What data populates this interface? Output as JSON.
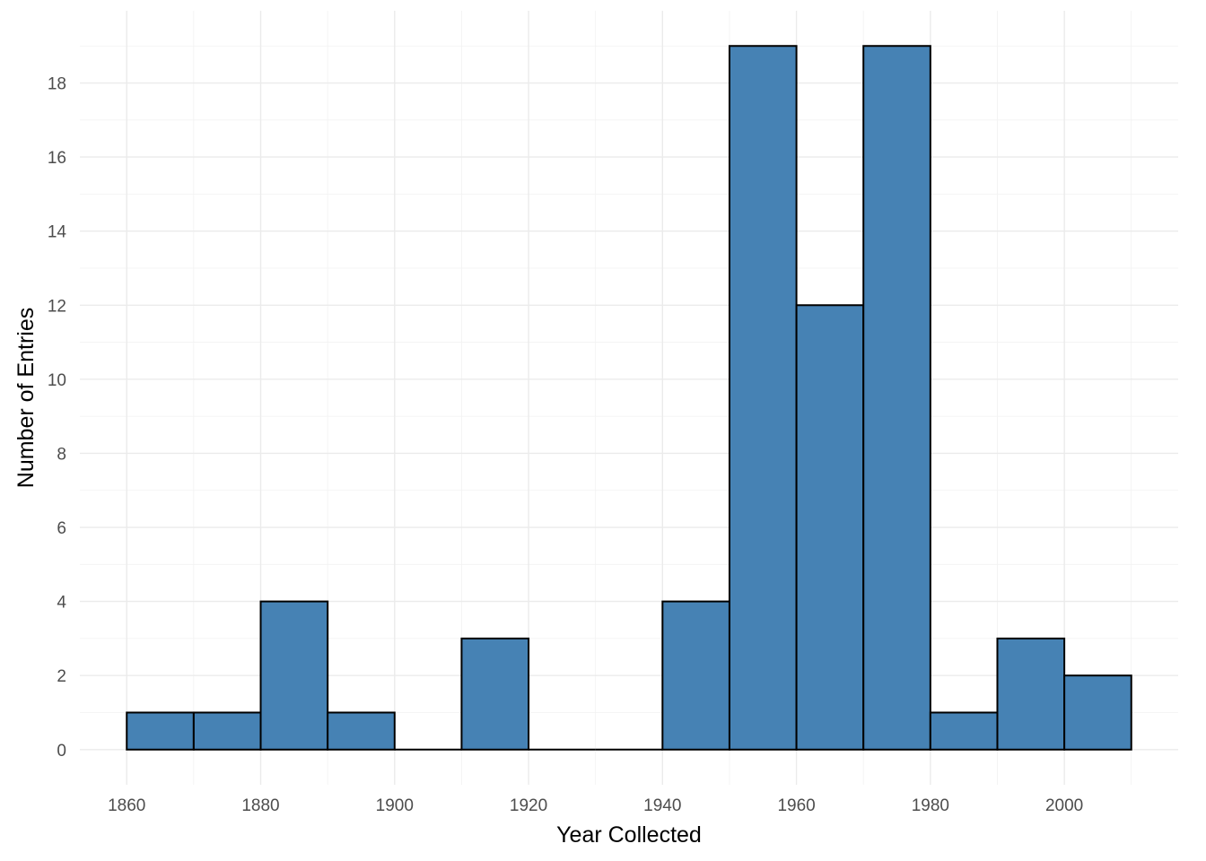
{
  "chart_data": {
    "type": "bar",
    "subtype": "histogram",
    "title": "",
    "xlabel": "Year Collected",
    "ylabel": "Number of Entries",
    "bin_width": 10,
    "bins": [
      {
        "start": 1860,
        "end": 1870,
        "count": 1
      },
      {
        "start": 1870,
        "end": 1880,
        "count": 1
      },
      {
        "start": 1880,
        "end": 1890,
        "count": 4
      },
      {
        "start": 1890,
        "end": 1900,
        "count": 1
      },
      {
        "start": 1900,
        "end": 1910,
        "count": 0
      },
      {
        "start": 1910,
        "end": 1920,
        "count": 3
      },
      {
        "start": 1920,
        "end": 1930,
        "count": 0
      },
      {
        "start": 1930,
        "end": 1940,
        "count": 0
      },
      {
        "start": 1940,
        "end": 1950,
        "count": 4
      },
      {
        "start": 1950,
        "end": 1960,
        "count": 19
      },
      {
        "start": 1960,
        "end": 1970,
        "count": 12
      },
      {
        "start": 1970,
        "end": 1980,
        "count": 19
      },
      {
        "start": 1980,
        "end": 1990,
        "count": 1
      },
      {
        "start": 1990,
        "end": 2000,
        "count": 3
      },
      {
        "start": 2000,
        "end": 2010,
        "count": 2
      }
    ],
    "xlim": [
      1853,
      2017
    ],
    "ylim": [
      -0.95,
      19.95
    ],
    "x_ticks": [
      1860,
      1880,
      1900,
      1920,
      1940,
      1960,
      1980,
      2000
    ],
    "x_minor_ticks": [
      1870,
      1890,
      1910,
      1930,
      1950,
      1970,
      1990,
      2010
    ],
    "y_ticks": [
      0,
      2,
      4,
      6,
      8,
      10,
      12,
      14,
      16,
      18
    ],
    "y_minor_ticks": [
      1,
      3,
      5,
      7,
      9,
      11,
      13,
      15,
      17,
      19
    ],
    "bar_color": "#4682b4",
    "bar_outline": "#000000",
    "grid": true,
    "legend": "none"
  }
}
